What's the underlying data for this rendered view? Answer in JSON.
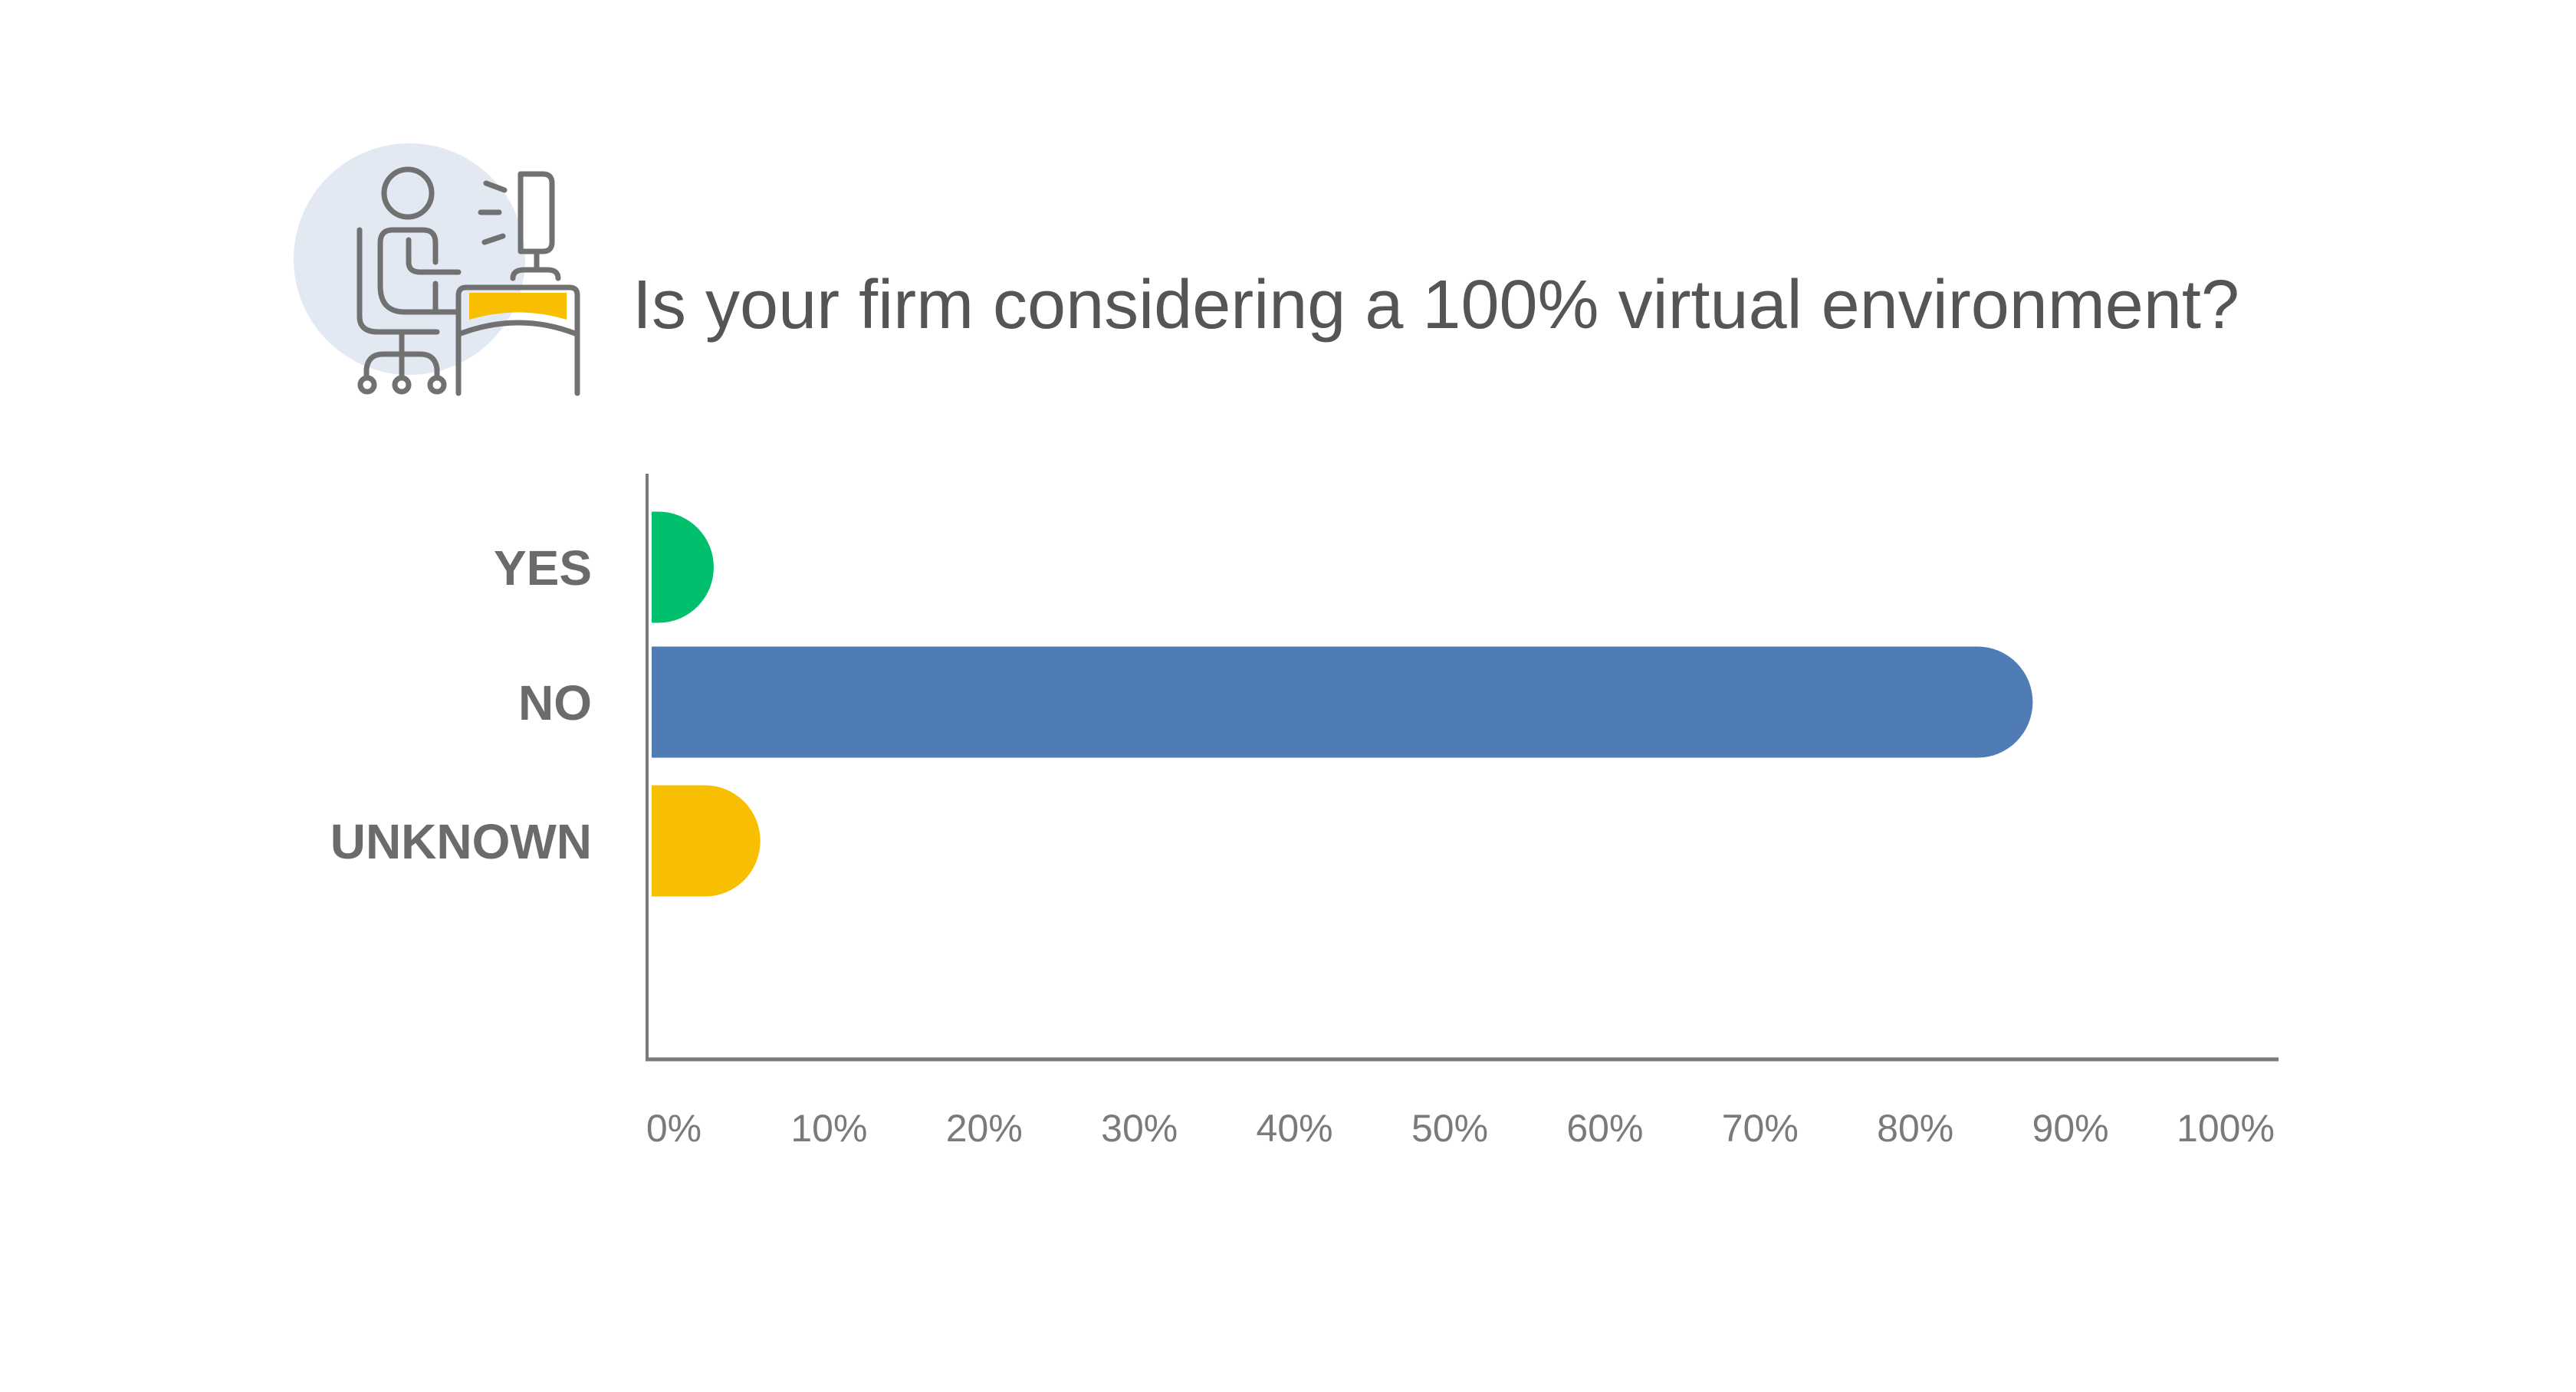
{
  "chart_data": {
    "type": "bar",
    "orientation": "horizontal",
    "title": "Is your firm considering a 100% virtual environment?",
    "categories": [
      "YES",
      "NO",
      "UNKNOWN"
    ],
    "values": [
      4,
      89,
      7
    ],
    "unit": "%",
    "colors": [
      "#00c06d",
      "#4f7cb5",
      "#f8be00"
    ],
    "xlim": [
      0,
      100
    ],
    "xticks": [
      "0%",
      "10%",
      "20%",
      "30%",
      "40%",
      "50%",
      "60%",
      "70%",
      "80%",
      "90%",
      "100%"
    ],
    "grid": false,
    "legend": "none"
  },
  "icon": {
    "name": "person-at-computer-desk-icon",
    "accent": "#f8be00",
    "backdrop": "#e3e9f3"
  }
}
